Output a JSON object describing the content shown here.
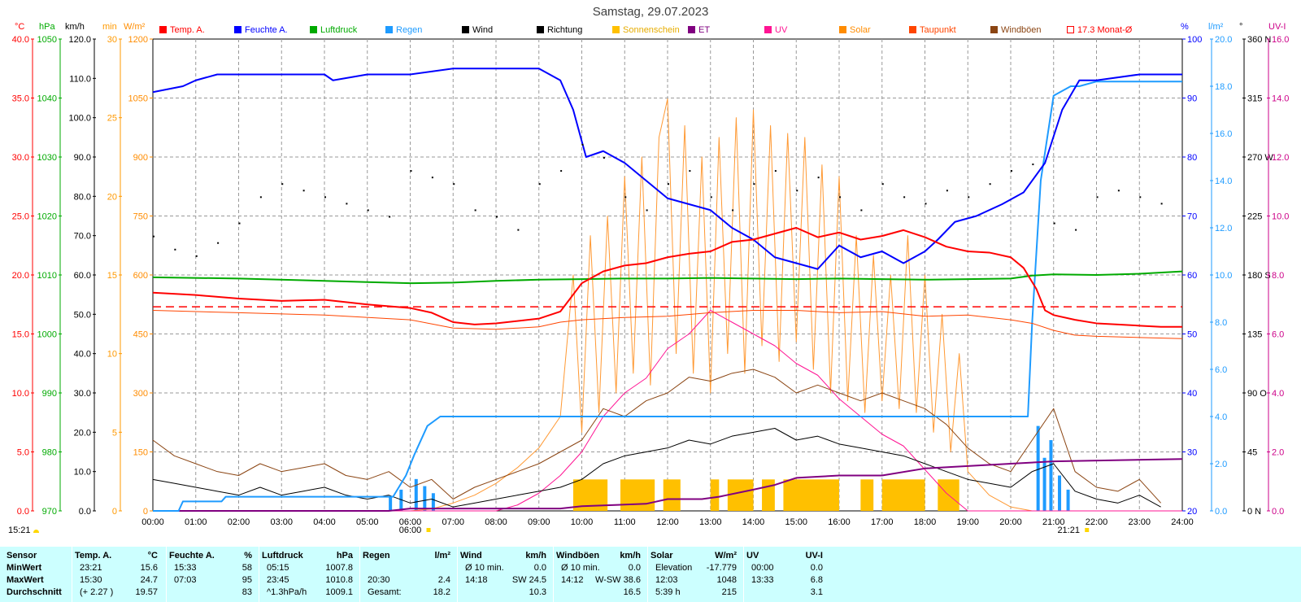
{
  "title": "Samstag, 29.07.2023",
  "legend": [
    {
      "label": "Temp. A.",
      "color": "#ff0000"
    },
    {
      "label": "Feuchte A.",
      "color": "#0000ff"
    },
    {
      "label": "Luftdruck",
      "color": "#00aa00"
    },
    {
      "label": "Regen",
      "color": "#1e9bff"
    },
    {
      "label": "Wind",
      "color": "#000000"
    },
    {
      "label": "Richtung",
      "color": "#000000"
    },
    {
      "label": "Sonnenschein",
      "color": "#ffc000"
    },
    {
      "label": "ET",
      "color": "#800080"
    },
    {
      "label": "UV",
      "color": "#ff1493"
    },
    {
      "label": "Solar",
      "color": "#ff8c00"
    },
    {
      "label": "Taupunkt",
      "color": "#ff4500"
    },
    {
      "label": "Windböen",
      "color": "#8b4513"
    },
    {
      "label": "17.3 Monat-Ø",
      "color": "#ff0000",
      "box": true
    }
  ],
  "units": {
    "temp": "°C",
    "hpa": "hPa",
    "kmh": "km/h",
    "min": "min",
    "wm2": "W/m²",
    "pct": "%",
    "lm2": "l/m²",
    "deg": "°",
    "uvi": "UV-I"
  },
  "colors": {
    "temp": "#ff0000",
    "hpa": "#00aa00",
    "kmh": "#000000",
    "min": "#ff9900",
    "wm2": "#ff8c00",
    "pct": "#0000ff",
    "lm2": "#1e9bff",
    "deg": "#000000",
    "uvi": "#cc0088"
  },
  "sunrise": {
    "time": "06:00",
    "label": "15:21"
  },
  "sunset": {
    "time": "21:21"
  },
  "chart_data": {
    "type": "line",
    "x_ticks": [
      "00:00",
      "01:00",
      "02:00",
      "03:00",
      "04:00",
      "05:00",
      "06:00",
      "07:00",
      "08:00",
      "09:00",
      "10:00",
      "11:00",
      "12:00",
      "13:00",
      "14:00",
      "15:00",
      "16:00",
      "17:00",
      "18:00",
      "19:00",
      "20:00",
      "21:00",
      "22:00",
      "23:00",
      "24:00"
    ],
    "axes": {
      "temp": {
        "ticks": [
          "40.0",
          "35.0",
          "30.0",
          "25.0",
          "20.0",
          "15.0",
          "10.0",
          "5.0",
          "0.0"
        ],
        "range": [
          0,
          40
        ]
      },
      "hpa": {
        "ticks": [
          "1050",
          "1040",
          "1030",
          "1020",
          "1010",
          "1000",
          "990",
          "980",
          "970"
        ],
        "range": [
          970,
          1050
        ]
      },
      "kmh": {
        "ticks": [
          "120.0",
          "110.0",
          "100.0",
          "90.0",
          "80.0",
          "70.0",
          "60.0",
          "50.0",
          "40.0",
          "30.0",
          "20.0",
          "10.0",
          "0.0"
        ],
        "range": [
          0,
          120
        ]
      },
      "min": {
        "ticks": [
          "30",
          "25",
          "20",
          "15",
          "10",
          "5",
          "0"
        ],
        "range": [
          0,
          30
        ]
      },
      "wm2": {
        "ticks": [
          "1200",
          "1050",
          "900",
          "750",
          "600",
          "450",
          "300",
          "150",
          "0"
        ],
        "range": [
          0,
          1200
        ]
      },
      "pct": {
        "ticks": [
          "100",
          "90",
          "80",
          "70",
          "60",
          "50",
          "40",
          "30",
          "20"
        ],
        "range": [
          20,
          100
        ]
      },
      "lm2": {
        "ticks": [
          "20.0",
          "18.0",
          "16.0",
          "14.0",
          "12.0",
          "10.0",
          "8.0",
          "6.0",
          "4.0",
          "2.0",
          "0.0"
        ],
        "range": [
          0,
          20
        ]
      },
      "deg": {
        "ticks": [
          "360 N",
          "315",
          "270 W",
          "225",
          "180 S",
          "135",
          "90 O",
          "45",
          "0 N"
        ],
        "range": [
          0,
          360
        ]
      },
      "uvi": {
        "ticks": [
          "16.0",
          "14.0",
          "12.0",
          "10.0",
          "8.0",
          "6.0",
          "4.0",
          "2.0",
          "0.0"
        ],
        "range": [
          0,
          16
        ]
      }
    },
    "month_avg_temp": 17.3,
    "series": {
      "temp": {
        "x": [
          0,
          1,
          2,
          3,
          4,
          5,
          6,
          6.5,
          7,
          7.5,
          8,
          9,
          9.5,
          10,
          10.5,
          11,
          11.5,
          12,
          12.5,
          13,
          13.5,
          14,
          14.5,
          15,
          15.5,
          16,
          16.5,
          17,
          17.5,
          18,
          18.5,
          19,
          19.5,
          20,
          20.3,
          20.6,
          20.8,
          21,
          21.5,
          22,
          22.5,
          23,
          23.5,
          24
        ],
        "y": [
          18.5,
          18.3,
          18.0,
          17.8,
          17.9,
          17.5,
          17.2,
          16.8,
          16.0,
          15.8,
          15.9,
          16.3,
          16.9,
          19.3,
          20.3,
          20.8,
          21.0,
          21.5,
          21.8,
          22.0,
          22.8,
          23.0,
          23.5,
          24.0,
          23.2,
          23.6,
          23.0,
          23.3,
          23.8,
          23.2,
          22.4,
          22.0,
          21.9,
          21.5,
          20.6,
          18.8,
          17.0,
          16.6,
          16.2,
          15.9,
          15.8,
          15.7,
          15.6,
          15.6
        ]
      },
      "dew": {
        "x": [
          0,
          2,
          4,
          6,
          7,
          8,
          9,
          9.5,
          10,
          11,
          12,
          13,
          14,
          15,
          16,
          17,
          18,
          19,
          20,
          20.5,
          21,
          21.5,
          22,
          23,
          24
        ],
        "y": [
          17.0,
          16.8,
          16.6,
          16.2,
          15.5,
          15.4,
          15.6,
          16.0,
          16.2,
          16.4,
          16.5,
          16.8,
          17.0,
          17.0,
          16.8,
          16.9,
          16.5,
          16.6,
          16.2,
          15.9,
          15.3,
          14.9,
          14.8,
          14.7,
          14.6
        ]
      },
      "humidity": {
        "x": [
          0,
          0.7,
          1,
          1.5,
          2,
          3,
          4,
          4.2,
          5,
          6,
          7,
          8,
          9,
          9.5,
          9.8,
          10.1,
          10.5,
          11,
          11.5,
          12,
          12.5,
          13,
          13.5,
          14,
          14.5,
          15,
          15.5,
          16,
          16.5,
          17,
          17.5,
          18,
          18.3,
          18.7,
          19.2,
          19.8,
          20.3,
          20.8,
          21.2,
          21.6,
          22,
          23,
          24
        ],
        "y": [
          91,
          92,
          93,
          94,
          94,
          94,
          94,
          93,
          94,
          94,
          95,
          95,
          95,
          93,
          88,
          80,
          81,
          79,
          76,
          73,
          72,
          71,
          68,
          66,
          63,
          62,
          61,
          65,
          63,
          64,
          62,
          64,
          66,
          69,
          70,
          72,
          74,
          79,
          88,
          93,
          93,
          94,
          94
        ]
      },
      "pressure": {
        "x": [
          0,
          2,
          4,
          5,
          6,
          7,
          8,
          9,
          10,
          11,
          12,
          13,
          14,
          15,
          16,
          17,
          18,
          19,
          20,
          20.5,
          21,
          22,
          23,
          24
        ],
        "y": [
          1009.6,
          1009.4,
          1009.0,
          1008.8,
          1008.6,
          1008.7,
          1009.0,
          1009.2,
          1009.3,
          1009.4,
          1009.4,
          1009.5,
          1009.4,
          1009.3,
          1009.4,
          1009.3,
          1009.2,
          1009.3,
          1009.4,
          1009.9,
          1010.1,
          1010.0,
          1010.2,
          1010.6
        ]
      },
      "rain": {
        "x": [
          0,
          0.6,
          0.7,
          1.6,
          1.7,
          5.6,
          5.9,
          6.1,
          6.4,
          6.7,
          20.4,
          20.5,
          20.7,
          21.0,
          21.4,
          21.6,
          22,
          24
        ],
        "y": [
          0,
          0,
          0.4,
          0.4,
          0.6,
          0.6,
          1.5,
          2.4,
          3.6,
          4.0,
          4.0,
          8.0,
          14.0,
          17.6,
          18.0,
          18.0,
          18.2,
          18.2
        ]
      },
      "et": {
        "x": [
          0,
          5.5,
          6.0,
          9.5,
          10.0,
          11.5,
          12.0,
          12.8,
          13.2,
          14.0,
          14.5,
          15.0,
          16.0,
          17.0,
          18.0,
          19.0,
          20.0,
          21.0,
          24
        ],
        "y": [
          0,
          0,
          0.1,
          0.1,
          0.2,
          0.3,
          0.5,
          0.5,
          0.6,
          0.9,
          1.1,
          1.4,
          1.5,
          1.5,
          1.8,
          1.9,
          2.0,
          2.1,
          2.2
        ]
      },
      "sunshine_intervals": [
        [
          9.8,
          10.6
        ],
        [
          10.9,
          11.7
        ],
        [
          11.9,
          12.3
        ],
        [
          13.0,
          13.2
        ],
        [
          13.4,
          14.0
        ],
        [
          14.2,
          14.5
        ],
        [
          14.7,
          16.0
        ],
        [
          16.5,
          16.8
        ],
        [
          17.0,
          18.0
        ],
        [
          18.3,
          18.8
        ]
      ],
      "sunshine_level": 2,
      "uv": {
        "x": [
          0,
          8,
          8.5,
          9,
          9.5,
          10,
          10.5,
          11,
          11.5,
          12,
          12.5,
          13,
          13.5,
          14,
          14.5,
          15,
          15.5,
          16,
          16.5,
          17,
          17.5,
          18,
          18.5,
          19,
          24
        ],
        "y": [
          0,
          0,
          0.2,
          0.6,
          1.2,
          2,
          3.2,
          4,
          4.5,
          5.5,
          6,
          6.8,
          6.4,
          6,
          5.6,
          5,
          4.6,
          3.8,
          3.2,
          2.6,
          2.2,
          1.4,
          0.6,
          0,
          0
        ]
      },
      "solar": {
        "x": [
          0,
          6,
          6.5,
          7,
          7.5,
          8,
          8.5,
          9,
          9.5,
          9.8,
          10,
          10.2,
          10.4,
          10.6,
          10.8,
          11,
          11.2,
          11.4,
          11.6,
          11.8,
          12,
          12.2,
          12.4,
          12.6,
          12.8,
          13,
          13.2,
          13.4,
          13.6,
          13.8,
          14,
          14.2,
          14.4,
          14.6,
          14.8,
          15,
          15.2,
          15.4,
          15.6,
          15.8,
          16,
          16.2,
          16.4,
          16.6,
          16.8,
          17,
          17.2,
          17.4,
          17.6,
          17.8,
          18,
          18.2,
          18.4,
          18.6,
          18.8,
          19,
          19.5,
          20,
          20.5,
          21,
          24
        ],
        "y": [
          0,
          0,
          5,
          20,
          40,
          70,
          110,
          160,
          240,
          600,
          200,
          700,
          250,
          750,
          300,
          850,
          350,
          900,
          320,
          950,
          1048,
          400,
          980,
          350,
          900,
          300,
          950,
          400,
          1000,
          350,
          1020,
          420,
          980,
          380,
          960,
          430,
          950,
          360,
          880,
          300,
          850,
          280,
          700,
          250,
          650,
          280,
          600,
          260,
          700,
          250,
          600,
          200,
          500,
          150,
          400,
          100,
          40,
          10,
          0,
          0,
          0
        ]
      },
      "wind": {
        "x": [
          0,
          0.5,
          1,
          1.5,
          2,
          2.5,
          3,
          3.5,
          4,
          4.5,
          5,
          5.5,
          6,
          6.5,
          7,
          7.5,
          8,
          8.5,
          9,
          9.5,
          10,
          10.5,
          11,
          11.5,
          12,
          12.5,
          13,
          13.5,
          14,
          14.5,
          15,
          15.5,
          16,
          16.5,
          17,
          17.5,
          18,
          18.5,
          19,
          19.5,
          20,
          20.5,
          21,
          21.5,
          22,
          22.5,
          23,
          23.5
        ],
        "y": [
          8,
          7,
          6,
          5,
          4,
          6,
          4,
          5,
          6,
          4,
          3,
          4,
          2,
          3,
          1,
          2,
          3,
          4,
          5,
          6,
          8,
          12,
          14,
          15,
          16,
          18,
          17,
          19,
          20,
          21,
          18,
          19,
          17,
          16,
          15,
          14,
          12,
          10,
          8,
          7,
          6,
          10,
          12,
          5,
          3,
          2,
          4,
          1
        ]
      },
      "gust": {
        "x": [
          0,
          0.5,
          1,
          1.5,
          2,
          2.5,
          3,
          3.5,
          4,
          4.5,
          5,
          5.5,
          6,
          6.5,
          7,
          7.5,
          8,
          8.5,
          9,
          9.5,
          10,
          10.5,
          11,
          11.5,
          12,
          12.5,
          13,
          13.5,
          14,
          14.5,
          15,
          15.5,
          16,
          16.5,
          17,
          17.5,
          18,
          18.5,
          19,
          19.5,
          20,
          20.5,
          21,
          21.5,
          22,
          22.5,
          23,
          23.5
        ],
        "y": [
          18,
          14,
          12,
          10,
          9,
          12,
          10,
          11,
          12,
          9,
          8,
          10,
          6,
          8,
          3,
          6,
          8,
          10,
          12,
          15,
          18,
          26,
          24,
          28,
          30,
          34,
          33,
          35,
          36,
          34,
          30,
          32,
          30,
          28,
          30,
          28,
          26,
          22,
          16,
          12,
          10,
          18,
          26,
          10,
          6,
          5,
          8,
          2
        ]
      },
      "direction": {
        "x": [
          0,
          0.5,
          1,
          1.5,
          2,
          2.5,
          3,
          3.5,
          4,
          4.5,
          5,
          5.5,
          6,
          6.5,
          7,
          7.5,
          8,
          8.5,
          9,
          9.5,
          10,
          10.5,
          11,
          11.5,
          12,
          12.5,
          13,
          13.5,
          14,
          14.5,
          15,
          15.5,
          16,
          16.5,
          17,
          17.5,
          18,
          18.5,
          19,
          19.5,
          20,
          20.5,
          21,
          21.5,
          22,
          22.5,
          23,
          23.5
        ],
        "y": [
          210,
          200,
          195,
          205,
          220,
          240,
          250,
          245,
          240,
          235,
          230,
          225,
          260,
          255,
          250,
          230,
          225,
          215,
          250,
          260,
          280,
          270,
          240,
          230,
          250,
          260,
          240,
          230,
          250,
          260,
          245,
          255,
          240,
          230,
          250,
          240,
          235,
          245,
          240,
          250,
          260,
          265,
          220,
          215,
          240,
          245,
          240,
          235
        ]
      }
    }
  },
  "stats": {
    "columns": [
      {
        "header": "Temp. A.",
        "unit": "°C",
        "min_time": "23:21",
        "min": "15.6",
        "max_time": "15:30",
        "max": "24.7",
        "avg_label": "(+ 2.27 )",
        "avg": "19.57"
      },
      {
        "header": "Feuchte A.",
        "unit": "%",
        "min_time": "15:33",
        "min": "58",
        "max_time": "07:03",
        "max": "95",
        "avg_label": "",
        "avg": "83"
      },
      {
        "header": "Luftdruck",
        "unit": "hPa",
        "min_time": "05:15",
        "min": "1007.8",
        "max_time": "23:45",
        "max": "1010.8",
        "avg_label": "^1.3hPa/h",
        "avg": "1009.1"
      },
      {
        "header": "Regen",
        "unit": "l/m²",
        "min_time": "",
        "min": "",
        "max_time": "20:30",
        "max": "2.4",
        "avg_label": "Gesamt:",
        "avg": "18.2"
      },
      {
        "header": "Wind",
        "unit": "km/h",
        "min_time": "Ø 10 min.",
        "min": "0.0",
        "max_time": "14:18",
        "max": "SW 24.5",
        "avg_label": "",
        "avg": "10.3"
      },
      {
        "header": "Windböen",
        "unit": "km/h",
        "min_time": "Ø 10 min.",
        "min": "0.0",
        "max_time": "14:12",
        "max": "W-SW 38.6",
        "avg_label": "",
        "avg": "16.5"
      },
      {
        "header": "Solar",
        "unit": "W/m²",
        "min_time": "Elevation",
        "min": "-17.779",
        "max_time": "12:03",
        "max": "1048",
        "avg_label": "5:39 h",
        "avg": "215"
      },
      {
        "header": "UV",
        "unit": "UV-I",
        "min_time": "00:00",
        "min": "0.0",
        "max_time": "13:33",
        "max": "6.8",
        "avg_label": "",
        "avg": "3.1"
      }
    ],
    "row_labels": {
      "sensor": "Sensor",
      "min": "MinWert",
      "max": "MaxWert",
      "avg": "Durchschnitt"
    }
  }
}
